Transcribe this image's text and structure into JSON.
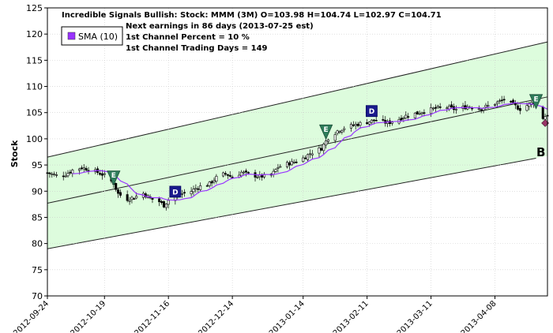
{
  "chart_data": {
    "type": "candlestick",
    "ylabel": "Stock",
    "ylim": [
      70,
      125
    ],
    "yticks": [
      70,
      75,
      80,
      85,
      90,
      95,
      100,
      105,
      110,
      115,
      120,
      125
    ],
    "x_range": [
      "2012-09-24",
      "2013-05-01"
    ],
    "x_tick_labels": [
      "2012-09-24",
      "2012-10-19",
      "2012-11-16",
      "2012-12-14",
      "2013-01-14",
      "2013-02-11",
      "2013-03-11",
      "2013-04-08"
    ],
    "title_lines": [
      "Incredible Signals Bullish: Stock: MMM (3M) O=103.98  H=104.74  L=102.97  C=104.71",
      "Next earnings in 86 days  (2013-07-25 est)",
      "1st Channel Percent = 10 %",
      "1st Channel Trading Days = 149"
    ],
    "legend": {
      "label": "SMA (10)",
      "color": "#9933ff",
      "position": "top-left"
    },
    "channel": {
      "fill": "#ddfcdd",
      "line_color": "#222222",
      "start": "2012-09-24",
      "end": "2013-05-01",
      "upper": [
        96.5,
        118.5
      ],
      "middle": [
        87.7,
        108.0
      ],
      "lower": [
        79.0,
        96.7
      ]
    },
    "sma_color": "#9933ff",
    "closes": [
      [
        "2012-09-24",
        93.5
      ],
      [
        "2012-09-28",
        93.0
      ],
      [
        "2012-10-02",
        93.2
      ],
      [
        "2012-10-05",
        94.0
      ],
      [
        "2012-10-09",
        94.5
      ],
      [
        "2012-10-12",
        94.2
      ],
      [
        "2012-10-16",
        93.6
      ],
      [
        "2012-10-19",
        93.0
      ],
      [
        "2012-10-23",
        91.5
      ],
      [
        "2012-10-25",
        89.5
      ],
      [
        "2012-10-29",
        88.5
      ],
      [
        "2012-11-01",
        88.8
      ],
      [
        "2012-11-05",
        89.6
      ],
      [
        "2012-11-08",
        88.6
      ],
      [
        "2012-11-12",
        88.0
      ],
      [
        "2012-11-14",
        87.3
      ],
      [
        "2012-11-16",
        88.3
      ],
      [
        "2012-11-20",
        89.3
      ],
      [
        "2012-11-26",
        90.0
      ],
      [
        "2012-11-29",
        90.8
      ],
      [
        "2012-12-04",
        91.4
      ],
      [
        "2012-12-07",
        92.6
      ],
      [
        "2012-12-11",
        93.4
      ],
      [
        "2012-12-14",
        92.6
      ],
      [
        "2012-12-18",
        93.6
      ],
      [
        "2012-12-21",
        93.2
      ],
      [
        "2012-12-26",
        92.8
      ],
      [
        "2012-12-31",
        93.0
      ],
      [
        "2013-01-03",
        94.6
      ],
      [
        "2013-01-07",
        95.2
      ],
      [
        "2013-01-10",
        95.6
      ],
      [
        "2013-01-14",
        96.3
      ],
      [
        "2013-01-17",
        97.2
      ],
      [
        "2013-01-22",
        98.2
      ],
      [
        "2013-01-25",
        100.2
      ],
      [
        "2013-01-29",
        101.5
      ],
      [
        "2013-02-01",
        102.1
      ],
      [
        "2013-02-05",
        102.6
      ],
      [
        "2013-02-08",
        102.9
      ],
      [
        "2013-02-12",
        103.3
      ],
      [
        "2013-02-15",
        103.6
      ],
      [
        "2013-02-20",
        103.0
      ],
      [
        "2013-02-25",
        103.8
      ],
      [
        "2013-02-28",
        104.4
      ],
      [
        "2013-03-05",
        104.9
      ],
      [
        "2013-03-08",
        105.3
      ],
      [
        "2013-03-13",
        105.8
      ],
      [
        "2013-03-18",
        106.0
      ],
      [
        "2013-03-22",
        105.6
      ],
      [
        "2013-03-27",
        106.2
      ],
      [
        "2013-04-02",
        105.8
      ],
      [
        "2013-04-05",
        106.3
      ],
      [
        "2013-04-10",
        107.1
      ],
      [
        "2013-04-12",
        107.5
      ],
      [
        "2013-04-16",
        106.5
      ],
      [
        "2013-04-19",
        105.7
      ],
      [
        "2013-04-23",
        106.6
      ],
      [
        "2013-04-25",
        107.0
      ],
      [
        "2013-04-29",
        104.0
      ],
      [
        "2013-05-01",
        104.7
      ]
    ],
    "markers": [
      {
        "type": "E",
        "date": "2012-10-23",
        "price": 92.5
      },
      {
        "type": "D",
        "date": "2012-11-19",
        "price": 89.9
      },
      {
        "type": "E",
        "date": "2013-01-24",
        "price": 101.3
      },
      {
        "type": "D",
        "date": "2013-02-13",
        "price": 105.3
      },
      {
        "type": "E",
        "date": "2013-04-26",
        "price": 107.1
      }
    ],
    "end_marker": {
      "date": "2013-04-30",
      "price": 103.0,
      "color": "#993366"
    },
    "annotation": "B"
  }
}
